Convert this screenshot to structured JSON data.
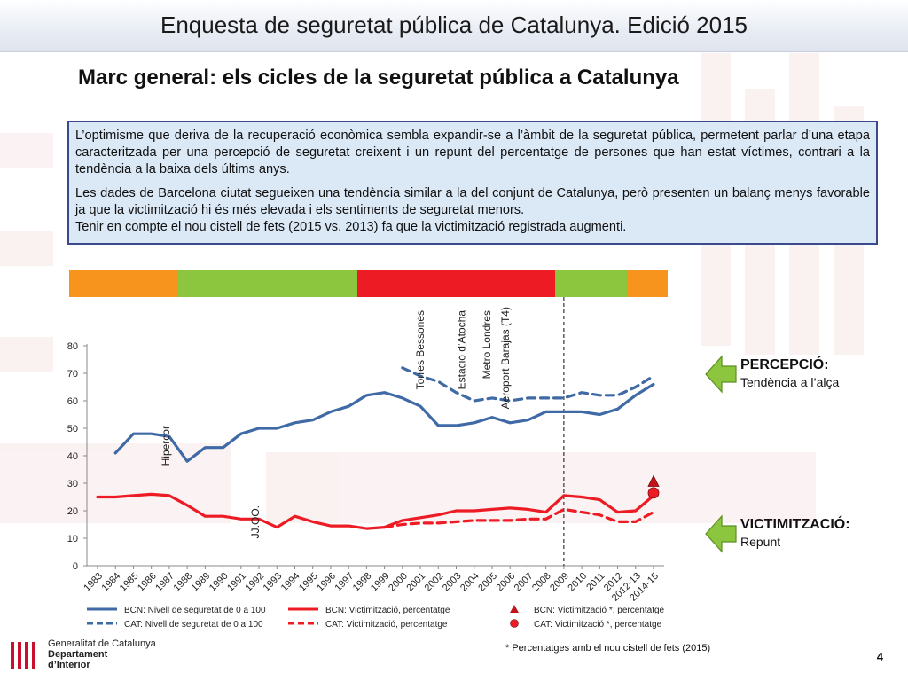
{
  "header": {
    "title": "Enquesta de seguretat pública de Catalunya. Edició 2015"
  },
  "subtitle": "Marc general: els cicles de la seguretat pública a Catalunya",
  "textbox": {
    "p1": "L’optimisme que deriva de la recuperació econòmica sembla expandir-se a l’àmbit de la seguretat pública, permetent parlar d’una etapa caracteritzada per una percepció de seguretat creixent i un repunt del percentatge de persones que han estat víctimes, contrari a la tendència a la baixa dels últims anys.",
    "p2": "Les dades de Barcelona ciutat segueixen una tendència similar a la del conjunt de Catalunya, però presenten un balanç menys favorable ja que la victimització hi és més elevada i els sentiments de seguretat menors.",
    "p3": "Tenir en compte el nou cistell de fets (2015 vs. 2013) fa que la victimització registrada augmenti."
  },
  "phases": [
    {
      "from": "1983",
      "to": "1988",
      "color": "#f7941d"
    },
    {
      "from": "1988",
      "to": "1998",
      "color": "#8cc63f"
    },
    {
      "from": "1998",
      "to": "2009",
      "color": "#ed1c24"
    },
    {
      "from": "2009",
      "to": "2012-13",
      "color": "#8cc63f"
    },
    {
      "from": "2012-13",
      "to": "2014-15",
      "color": "#f7941d"
    }
  ],
  "colors": {
    "bcn": "#3f6aa6",
    "red": "#ed1c24",
    "dark_red": "#c0141a"
  },
  "chart_data": {
    "type": "line",
    "categories": [
      "1983",
      "1984",
      "1985",
      "1986",
      "1987",
      "1988",
      "1989",
      "1990",
      "1991",
      "1992",
      "1993",
      "1994",
      "1995",
      "1996",
      "1997",
      "1998",
      "1999",
      "2000",
      "2001",
      "2002",
      "2003",
      "2004",
      "2005",
      "2006",
      "2007",
      "2008",
      "2009",
      "2010",
      "2011",
      "2012",
      "2012-13",
      "2014-15"
    ],
    "ylim": [
      0,
      80
    ],
    "yticks": [
      "0",
      "10",
      "20",
      "30",
      "40",
      "50",
      "60",
      "70",
      "80"
    ],
    "grid": false,
    "series": [
      {
        "name": "BCN: Nivell de seguretat de 0 a 100",
        "style": "solid",
        "color": "#3f6aa6",
        "values": [
          null,
          41,
          48,
          48,
          47,
          38,
          43,
          43,
          48,
          50,
          50,
          52,
          53,
          56,
          58,
          62,
          63,
          61,
          58,
          51,
          51,
          52,
          54,
          52,
          53,
          56,
          56,
          56,
          55,
          57,
          62,
          66
        ]
      },
      {
        "name": "CAT: Nivell de seguretat de 0 a 100",
        "style": "dashed",
        "color": "#3f6aa6",
        "values": [
          null,
          null,
          null,
          null,
          null,
          null,
          null,
          null,
          null,
          null,
          null,
          null,
          null,
          null,
          null,
          null,
          null,
          72,
          69,
          67,
          63,
          60,
          61,
          60,
          61,
          61,
          61,
          63,
          62,
          62,
          65,
          69
        ]
      },
      {
        "name": "BCN: Victimització, percentatge",
        "style": "solid",
        "color": "#ed1c24",
        "values": [
          25,
          25,
          25.5,
          26,
          25.5,
          22,
          18,
          18,
          17,
          17,
          14,
          18,
          16,
          14.5,
          14.5,
          13.5,
          14,
          16.5,
          17.5,
          18.5,
          20,
          20,
          20.5,
          21,
          20.5,
          19.5,
          25.5,
          25,
          24,
          19.5,
          20,
          25.5
        ]
      },
      {
        "name": "CAT: Victimització, percentatge",
        "style": "dashed",
        "color": "#ed1c24",
        "values": [
          null,
          null,
          null,
          null,
          null,
          null,
          null,
          null,
          null,
          null,
          null,
          null,
          null,
          null,
          null,
          null,
          14,
          15,
          15.5,
          15.5,
          16,
          16.5,
          16.5,
          16.5,
          17,
          17,
          20.5,
          19.5,
          18.5,
          16,
          16,
          19.5
        ]
      }
    ],
    "special_points": [
      {
        "name": "BCN: Victimització *, percentatge",
        "category": "2014-15",
        "value": 30.5,
        "marker": "triangle",
        "color": "#c0141a"
      },
      {
        "name": "CAT: Victimització *, percentatge",
        "category": "2014-15",
        "value": 26.5,
        "marker": "circle",
        "color": "#ed1c24"
      }
    ],
    "annotations": [
      {
        "text": "Hipercor",
        "category": "1987"
      },
      {
        "text": "JJ.OO.",
        "category": "1992"
      },
      {
        "text": "Torres Bessones",
        "category": "2001"
      },
      {
        "text": "Estació d’Atocha",
        "category": "2004"
      },
      {
        "text": "Metro Londres",
        "category": "2005"
      },
      {
        "text": "Aeroport Barajas (T4)",
        "category": "2006"
      }
    ],
    "divider_category": "2009",
    "callouts": [
      {
        "title": "PERCEPCIÓ:",
        "subtitle": "Tendència a l’alça"
      },
      {
        "title": "VICTIMITZACIÓ:",
        "subtitle": "Repunt"
      }
    ]
  },
  "footnote": "* Percentatges amb el nou cistell de fets (2015)",
  "page_number": "4",
  "logo": {
    "line1": "Generalitat de Catalunya",
    "line2": "Departament",
    "line3": "d’Interior"
  }
}
